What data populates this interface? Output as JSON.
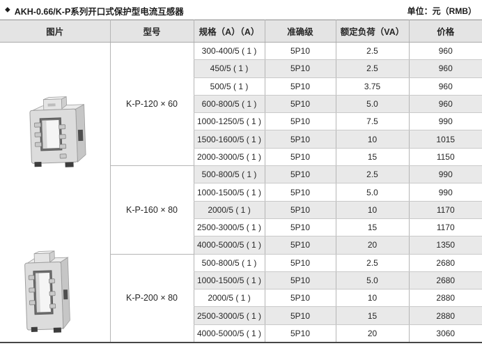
{
  "header": {
    "bullet": "◆",
    "title": "AKH-0.66/K-P系列开口式保护型电流互感器",
    "unit_label": "单位：元（RMB）"
  },
  "table": {
    "columns": [
      "图片",
      "型号",
      "规格（A）（A）",
      "准确级",
      "额定负荷（VA）",
      "价格"
    ],
    "groups": [
      {
        "model": "K-P-120 × 60",
        "rows": [
          [
            "300-400/5 ( 1 )",
            "5P10",
            "2.5",
            "960"
          ],
          [
            "450/5 ( 1 )",
            "5P10",
            "2.5",
            "960"
          ],
          [
            "500/5 ( 1 )",
            "5P10",
            "3.75",
            "960"
          ],
          [
            "600-800/5 ( 1 )",
            "5P10",
            "5.0",
            "960"
          ],
          [
            "1000-1250/5 ( 1 )",
            "5P10",
            "7.5",
            "990"
          ],
          [
            "1500-1600/5 ( 1 )",
            "5P10",
            "10",
            "1015"
          ],
          [
            "2000-3000/5 ( 1 )",
            "5P10",
            "15",
            "1150"
          ]
        ]
      },
      {
        "model": "K-P-160 × 80",
        "rows": [
          [
            "500-800/5 ( 1 )",
            "5P10",
            "2.5",
            "990"
          ],
          [
            "1000-1500/5 ( 1 )",
            "5P10",
            "5.0",
            "990"
          ],
          [
            "2000/5 ( 1 )",
            "5P10",
            "10",
            "1170"
          ],
          [
            "2500-3000/5 ( 1 )",
            "5P10",
            "15",
            "1170"
          ],
          [
            "4000-5000/5 ( 1 )",
            "5P10",
            "20",
            "1350"
          ]
        ]
      },
      {
        "model": "K-P-200 × 80",
        "rows": [
          [
            "500-800/5 ( 1 )",
            "5P10",
            "2.5",
            "2680"
          ],
          [
            "1000-1500/5 ( 1 )",
            "5P10",
            "5.0",
            "2680"
          ],
          [
            "2000/5 ( 1 )",
            "5P10",
            "10",
            "2880"
          ],
          [
            "2500-3000/5 ( 1 )",
            "5P10",
            "15",
            "2880"
          ],
          [
            "4000-5000/5 ( 1 )",
            "5P10",
            "20",
            "3060"
          ]
        ]
      }
    ],
    "images": [
      {
        "name": "ct-product-photo-small",
        "alt": "开口式电流互感器产品图（K-P-120×60 / K-P-160×80）"
      },
      {
        "name": "ct-product-photo-tall",
        "alt": "开口式电流互感器产品图（K-P-200×80）"
      }
    ]
  },
  "colors": {
    "stripe": "#e9e9e9",
    "header_bg": "#e4e4e4",
    "grid_line": "#b5b5b5",
    "row_line": "#c9c9c9",
    "bottom_border": "#474747",
    "text": "#303030"
  }
}
